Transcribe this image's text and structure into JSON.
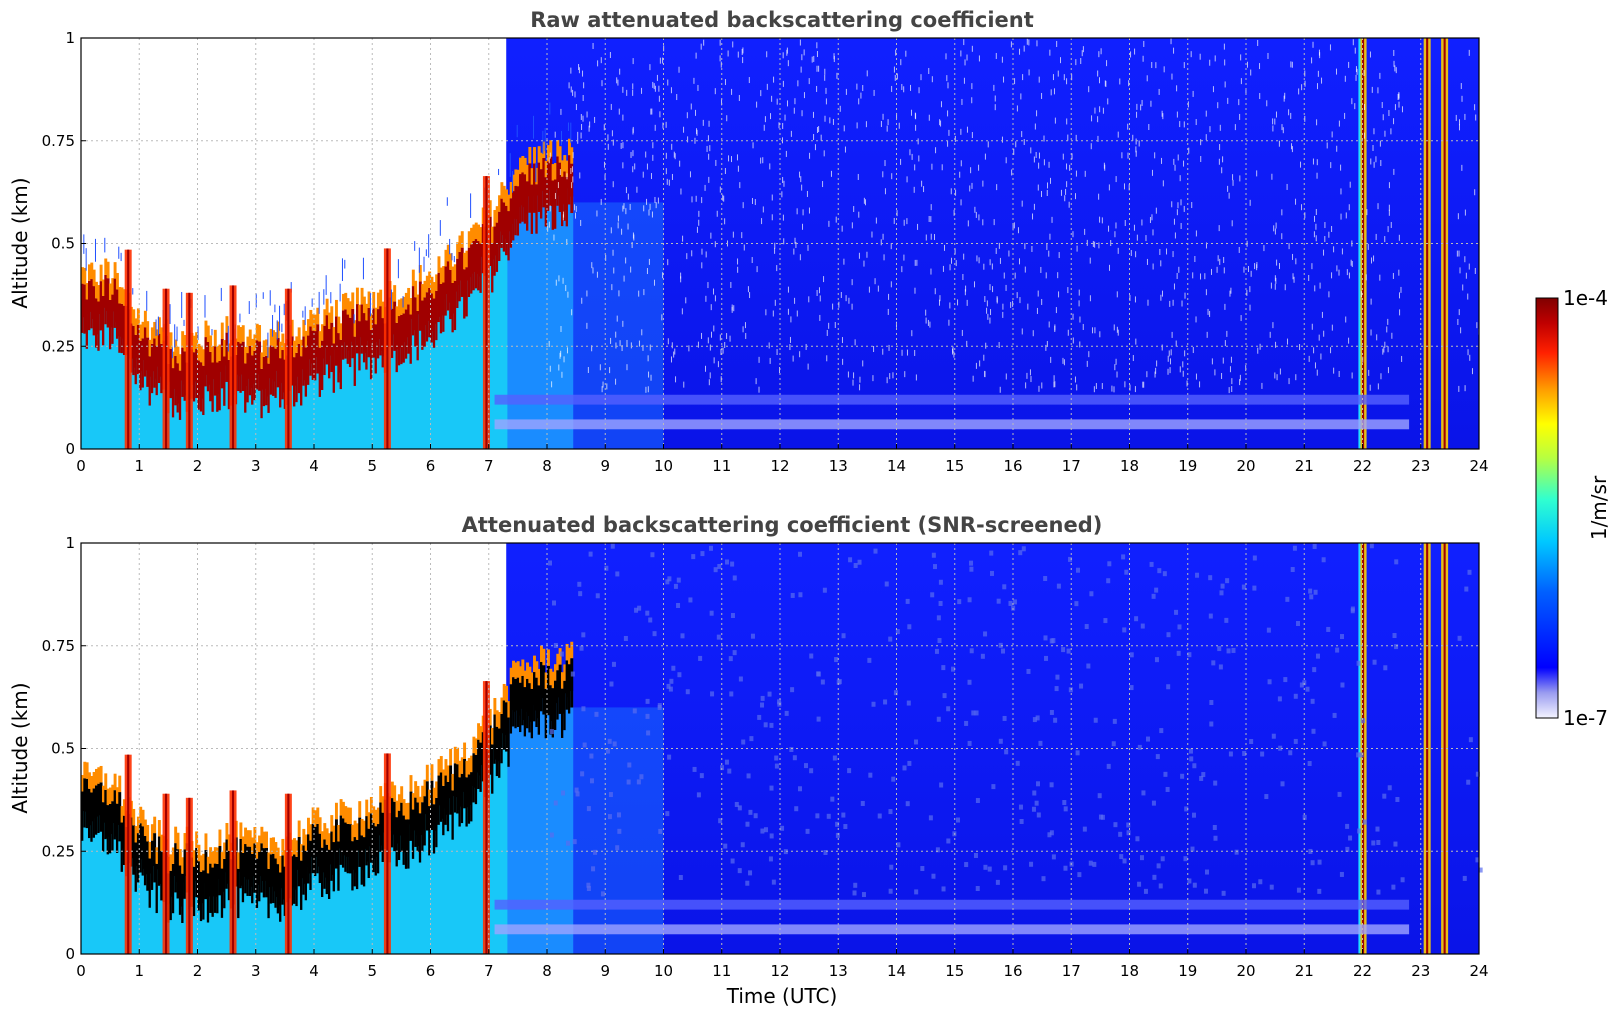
{
  "chart_data": [
    {
      "type": "heatmap",
      "title": "Raw attenuated backscattering coefficient",
      "xlabel": "",
      "ylabel": "Altitude (km)",
      "xlim": [
        0,
        24
      ],
      "ylim": [
        0,
        1
      ],
      "x_ticks": [
        "0",
        "1",
        "2",
        "3",
        "4",
        "5",
        "6",
        "7",
        "8",
        "9",
        "10",
        "11",
        "12",
        "13",
        "14",
        "15",
        "16",
        "17",
        "18",
        "19",
        "20",
        "21",
        "22",
        "23",
        "24"
      ],
      "y_ticks": [
        "0",
        "0.25",
        "0.5",
        "0.75",
        "1"
      ],
      "grid": true,
      "screened": false,
      "colorscale": "jet",
      "color_range": [
        "1e-7",
        "1e-4"
      ],
      "features": {
        "boundary_layer_top_km": [
          [
            0,
            0.36
          ],
          [
            0.5,
            0.36
          ],
          [
            1,
            0.25
          ],
          [
            1.5,
            0.2
          ],
          [
            2,
            0.2
          ],
          [
            2.5,
            0.22
          ],
          [
            3,
            0.2
          ],
          [
            3.5,
            0.21
          ],
          [
            4,
            0.25
          ],
          [
            4.5,
            0.27
          ],
          [
            5,
            0.3
          ],
          [
            5.5,
            0.32
          ],
          [
            6,
            0.36
          ],
          [
            6.5,
            0.42
          ],
          [
            7,
            0.5
          ],
          [
            7.5,
            0.63
          ],
          [
            8,
            0.65
          ],
          [
            8.4,
            0.65
          ]
        ],
        "plume_columns_hours": [
          0.75,
          1.4,
          1.8,
          2.55,
          3.5,
          5.2,
          6.9,
          21.95,
          23.05,
          23.35
        ],
        "low_layers_km": [
          0.06,
          0.12
        ]
      }
    },
    {
      "type": "heatmap",
      "title": "Attenuated backscattering coefficient (SNR-screened)",
      "xlabel": "Time (UTC)",
      "ylabel": "Altitude (km)",
      "xlim": [
        0,
        24
      ],
      "ylim": [
        0,
        1
      ],
      "x_ticks": [
        "0",
        "1",
        "2",
        "3",
        "4",
        "5",
        "6",
        "7",
        "8",
        "9",
        "10",
        "11",
        "12",
        "13",
        "14",
        "15",
        "16",
        "17",
        "18",
        "19",
        "20",
        "21",
        "22",
        "23",
        "24"
      ],
      "y_ticks": [
        "0",
        "0.25",
        "0.5",
        "0.75",
        "1"
      ],
      "grid": true,
      "screened": true,
      "colorscale": "jet",
      "color_range": [
        "1e-7",
        "1e-4"
      ],
      "features": {
        "boundary_layer_top_km": [
          [
            0,
            0.36
          ],
          [
            0.5,
            0.36
          ],
          [
            1,
            0.25
          ],
          [
            1.5,
            0.2
          ],
          [
            2,
            0.2
          ],
          [
            2.5,
            0.22
          ],
          [
            3,
            0.2
          ],
          [
            3.5,
            0.21
          ],
          [
            4,
            0.25
          ],
          [
            4.5,
            0.27
          ],
          [
            5,
            0.3
          ],
          [
            5.5,
            0.32
          ],
          [
            6,
            0.36
          ],
          [
            6.5,
            0.42
          ],
          [
            7,
            0.5
          ],
          [
            7.5,
            0.63
          ],
          [
            8,
            0.65
          ],
          [
            8.4,
            0.65
          ]
        ],
        "plume_columns_hours": [
          0.75,
          1.4,
          1.8,
          2.55,
          3.5,
          5.2,
          6.9,
          21.95,
          23.05,
          23.35
        ],
        "low_layers_km": [
          0.06,
          0.12
        ]
      }
    }
  ],
  "colorbar": {
    "label": "1/m/sr",
    "max_label": "1e-4",
    "min_label": "1e-7"
  }
}
